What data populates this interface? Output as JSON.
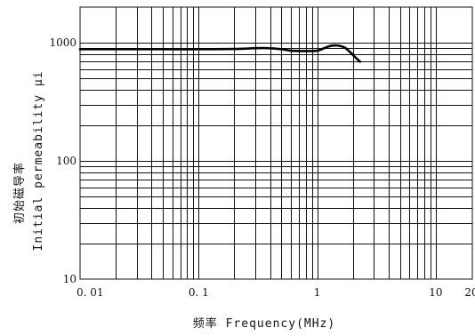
{
  "chart_data": {
    "type": "line",
    "title": "",
    "xlabel": "频率 Frequency(MHz)",
    "ylabel": "Initial permeability μi",
    "ylabel_cn": "初始磁导率",
    "x_scale": "log",
    "y_scale": "log",
    "xlim": [
      0.01,
      20
    ],
    "ylim": [
      10,
      2000
    ],
    "grid": true,
    "x_ticks": [
      {
        "value": 0.01,
        "label": "0. 01"
      },
      {
        "value": 0.1,
        "label": "0. 1"
      },
      {
        "value": 1,
        "label": "1"
      },
      {
        "value": 10,
        "label": "10"
      },
      {
        "value": 20,
        "label": "20"
      }
    ],
    "y_ticks": [
      {
        "value": 10,
        "label": "10"
      },
      {
        "value": 100,
        "label": "100"
      },
      {
        "value": 1000,
        "label": "1000"
      }
    ],
    "series": [
      {
        "name": "",
        "x": [
          0.01,
          0.05,
          0.1,
          0.2,
          0.35,
          0.5,
          0.6,
          0.8,
          1.0,
          1.15,
          1.3,
          1.5,
          1.7,
          1.9,
          2.1,
          2.3
        ],
        "y": [
          880,
          880,
          880,
          885,
          900,
          880,
          855,
          850,
          855,
          900,
          940,
          945,
          910,
          830,
          750,
          690
        ]
      }
    ]
  },
  "colors": {
    "line": "#000000",
    "grid": "#111111",
    "background": "#ffffff"
  }
}
